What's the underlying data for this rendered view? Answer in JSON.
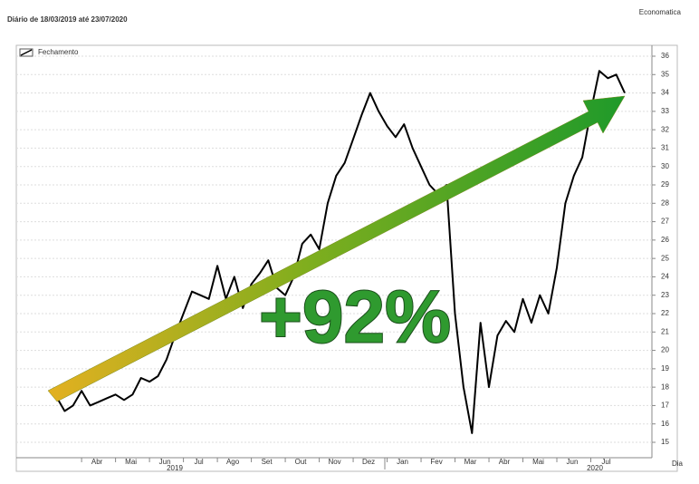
{
  "chart_data": {
    "type": "line",
    "title": "Diário de 18/03/2019 até 23/07/2020",
    "source": "Economatica",
    "x_label": "Dia",
    "year_labels": [
      "2019",
      "2020"
    ],
    "annotation": "+92%",
    "categories": [
      null,
      null,
      null,
      "Abr",
      null,
      null,
      null,
      "Mai",
      null,
      null,
      null,
      "Jun",
      null,
      null,
      null,
      "Jul",
      null,
      null,
      null,
      "Ago",
      null,
      null,
      null,
      "Set",
      null,
      null,
      null,
      "Out",
      null,
      null,
      null,
      "Nov",
      null,
      null,
      null,
      "Dez",
      null,
      null,
      null,
      "Jan",
      null,
      null,
      null,
      "Fev",
      null,
      null,
      null,
      "Mar",
      null,
      null,
      null,
      "Abr",
      null,
      null,
      null,
      "Mai",
      null,
      null,
      null,
      "Jun",
      null,
      null,
      null,
      "Jul",
      null,
      null,
      null,
      null
    ],
    "series": [
      {
        "name": "Fechamento",
        "color": "#000000",
        "values": [
          17.5,
          16.7,
          17.0,
          17.8,
          17.0,
          17.2,
          17.4,
          17.6,
          17.3,
          17.6,
          18.5,
          18.3,
          18.6,
          19.5,
          20.8,
          22.0,
          23.2,
          23.0,
          22.8,
          24.6,
          22.8,
          24.0,
          22.3,
          23.6,
          24.2,
          24.9,
          23.4,
          23.0,
          24.0,
          25.8,
          26.3,
          25.5,
          28.0,
          29.5,
          30.2,
          31.5,
          32.8,
          34.0,
          33.0,
          32.2,
          31.6,
          32.3,
          31.0,
          30.0,
          29.0,
          28.5,
          29.0,
          22.0,
          18.0,
          15.5,
          21.5,
          18.0,
          20.8,
          21.6,
          21.0,
          22.8,
          21.5,
          23.0,
          22.0,
          24.5,
          28.0,
          29.5,
          30.5,
          33.0,
          35.2,
          34.8,
          35.0,
          34.0
        ]
      }
    ],
    "ylim": [
      14.6,
      36.3
    ],
    "yticks": [
      15,
      16,
      17,
      18,
      19,
      20,
      21,
      22,
      23,
      24,
      25,
      26,
      27,
      28,
      29,
      30,
      31,
      32,
      33,
      34,
      35,
      36
    ],
    "grid": true,
    "legend": "top-left"
  }
}
